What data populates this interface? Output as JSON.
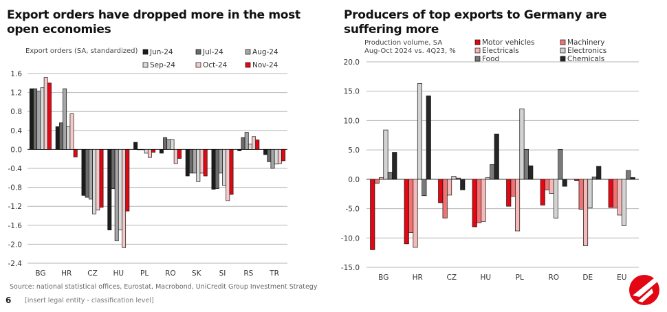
{
  "page_number": "6",
  "footer_note": "[insert legal entity - classification level]",
  "source": "Source: national statistical offices, Eurostat, Macrobond, UniCredit Group Investment Strategy",
  "chart_data": [
    {
      "type": "bar",
      "title": "Export orders have dropped more in the most open economies",
      "ylabel": "Export orders (SA, standardized)",
      "xlabel": "",
      "ylim": [
        -2.4,
        1.6
      ],
      "yticks": [
        "1.6",
        "1.2",
        "0.8",
        "0.4",
        "0.0",
        "-0.4",
        "-0.8",
        "-1.2",
        "-1.6",
        "-2.0",
        "-2.4"
      ],
      "grid": true,
      "legend_position": "top-right",
      "categories": [
        "BG",
        "HR",
        "CZ",
        "HU",
        "PL",
        "RO",
        "SK",
        "SI",
        "RS",
        "TR"
      ],
      "series": [
        {
          "name": "Jun-24",
          "color": "#1c1c1c",
          "values": [
            1.28,
            0.48,
            -0.97,
            -1.7,
            0.15,
            -0.08,
            -0.56,
            -0.84,
            -0.03,
            -0.11
          ]
        },
        {
          "name": "Jul-24",
          "color": "#6b6b6b",
          "values": [
            1.28,
            0.56,
            -1.01,
            -0.83,
            0.0,
            0.25,
            -0.5,
            -0.83,
            0.25,
            -0.26
          ]
        },
        {
          "name": "Aug-24",
          "color": "#a6a6a6",
          "values": [
            1.23,
            1.28,
            -1.05,
            -1.93,
            0.0,
            0.21,
            -0.5,
            -0.5,
            0.36,
            -0.4
          ]
        },
        {
          "name": "Sep-24",
          "color": "#dadada",
          "values": [
            1.3,
            0.48,
            -1.36,
            -1.7,
            -0.08,
            0.21,
            -0.68,
            -0.76,
            0.11,
            -0.31
          ]
        },
        {
          "name": "Oct-24",
          "color": "#f6c9c9",
          "values": [
            1.52,
            0.75,
            -1.28,
            -2.07,
            -0.17,
            -0.3,
            -0.5,
            -1.08,
            0.27,
            -0.3
          ]
        },
        {
          "name": "Nov-24",
          "color": "#e30613",
          "values": [
            1.4,
            -0.16,
            -1.22,
            -1.3,
            -0.06,
            -0.19,
            -0.56,
            -0.95,
            0.2,
            -0.24
          ]
        }
      ]
    },
    {
      "type": "bar",
      "title": "Producers of top exports to Germany are suffering more",
      "subtitle": [
        "Production volume, SA",
        "Aug-Oct 2024 vs. 4Q23, %"
      ],
      "xlabel": "",
      "ylabel": "",
      "ylim": [
        -15,
        20
      ],
      "yticks": [
        "20.0",
        "15.0",
        "10.0",
        "5.0",
        "0.0",
        "-5.0",
        "-10.0",
        "-15.0"
      ],
      "grid": true,
      "legend_position": "top-right",
      "categories": [
        "BG",
        "HR",
        "CZ",
        "HU",
        "PL",
        "RO",
        "DE",
        "EU"
      ],
      "series": [
        {
          "name": "Motor vehicles",
          "color": "#e30613",
          "values": [
            -12.0,
            -11.0,
            -4.0,
            -8.1,
            -4.6,
            -4.4,
            -0.2,
            -4.8
          ]
        },
        {
          "name": "Machinery",
          "color": "#f07272",
          "values": [
            -0.7,
            -9.1,
            -6.6,
            -7.4,
            -2.9,
            -1.8,
            -5.1,
            -4.8
          ]
        },
        {
          "name": "Electricals",
          "color": "#f6b9b9",
          "values": [
            0.3,
            -11.6,
            -2.7,
            -7.2,
            -8.8,
            -2.4,
            -11.3,
            -6.1
          ]
        },
        {
          "name": "Electronics",
          "color": "#d2d2d2",
          "values": [
            8.4,
            16.3,
            0.5,
            0.3,
            12.0,
            -6.6,
            -4.9,
            -7.9
          ]
        },
        {
          "name": "Food",
          "color": "#7a7a7a",
          "values": [
            1.2,
            -2.8,
            0.2,
            2.5,
            5.1,
            5.1,
            0.4,
            1.5
          ]
        },
        {
          "name": "Chemicals",
          "color": "#262626",
          "values": [
            4.6,
            14.2,
            -1.8,
            7.7,
            2.3,
            -1.2,
            2.2,
            0.3
          ]
        }
      ]
    }
  ]
}
